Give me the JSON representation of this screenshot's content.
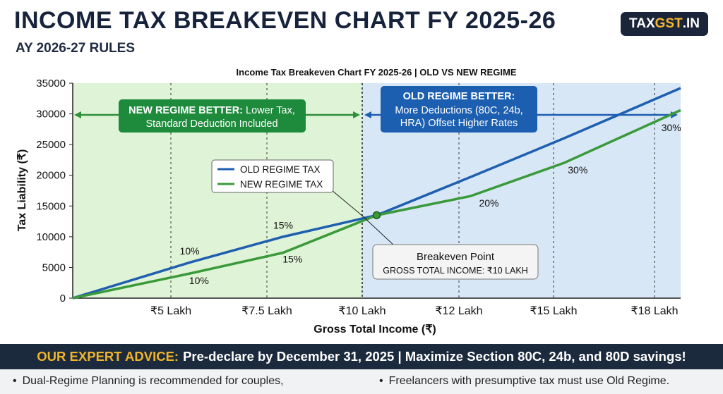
{
  "header": {
    "title": "INCOME TAX BREAKEVEN CHART FY 2025-26",
    "subtitle": "AY 2026-27 RULES"
  },
  "brand": {
    "part1": "TAX",
    "part2": "GST",
    "part3": ".IN"
  },
  "chart_data": {
    "type": "line",
    "title": "Income Tax Breakeven Chart FY 2025-26 | OLD VS NEW REGIME",
    "xlabel": "Gross Total Income (₹)",
    "ylabel": "Tax Liability (₹)",
    "ylim": [
      0,
      35000
    ],
    "yticks": [
      "0",
      "5000",
      "10000",
      "15000",
      "20000",
      "25000",
      "30000",
      "35000"
    ],
    "xticks": [
      "₹5 Lakh",
      "₹7.5 Lakh",
      "₹10 Lakh",
      "₹12 Lakh",
      "₹15 Lakh",
      "₹18 Lakh"
    ],
    "grid": "vertical dashed at each x tick",
    "legend_placement": "center",
    "series": [
      {
        "name": "OLD REGIME TAX",
        "color": "#1f5fb0",
        "points": [
          [
            0,
            0
          ],
          [
            2.5,
            5800
          ],
          [
            4.5,
            10000
          ],
          [
            6.5,
            13500
          ],
          [
            8.5,
            19700
          ],
          [
            10.5,
            26000
          ],
          [
            13,
            34200
          ]
        ]
      },
      {
        "name": "NEW REGIME TAX",
        "color": "#3a9a3a",
        "points": [
          [
            0,
            0
          ],
          [
            2.5,
            4000
          ],
          [
            4.5,
            7400
          ],
          [
            6.5,
            13500
          ],
          [
            8.5,
            16600
          ],
          [
            10.5,
            22000
          ],
          [
            13,
            30600
          ]
        ]
      }
    ],
    "rate_labels": [
      {
        "text": "10%",
        "x": 2.5,
        "y": 7100
      },
      {
        "text": "15%",
        "x": 4.5,
        "y": 11300
      },
      {
        "text": "10%",
        "x": 2.7,
        "y": 2300
      },
      {
        "text": "15%",
        "x": 4.7,
        "y": 5800
      },
      {
        "text": "20%",
        "x": 8.9,
        "y": 14900
      },
      {
        "text": "30%",
        "x": 10.8,
        "y": 20300
      },
      {
        "text": "30%",
        "x": 12.8,
        "y": 27200
      }
    ],
    "regions": {
      "new_better": {
        "title": "NEW REGIME BETTER:",
        "line1_rest": " Lower Tax,",
        "line2": "Standard Deduction Included",
        "color": "#1e8a3c"
      },
      "old_better": {
        "title": "OLD REGIME BETTER:",
        "line2": "More Deductions (80C, 24b,",
        "line3": "HRA) Offset Higher Rates",
        "color": "#1c5fb0"
      }
    },
    "breakeven": {
      "title": "Breakeven Point",
      "subtitle": "GROSS TOTAL INCOME: ₹10 LAKH",
      "x": 6.5,
      "y": 13500
    }
  },
  "advice": {
    "label": "OUR EXPERT ADVICE:",
    "text": "Pre-declare by December 31, 2025 | Maximize Section 80C, 24b, and 80D savings!"
  },
  "bullets": [
    "Dual-Regime Planning is recommended for couples,",
    "Freelancers with presumptive tax must use Old Regime."
  ],
  "colors": {
    "accent_dark": "#1c2a3e",
    "accent_gold": "#f0b429",
    "green_zone": "#dff3d6",
    "blue_zone": "#d7e7f6"
  }
}
